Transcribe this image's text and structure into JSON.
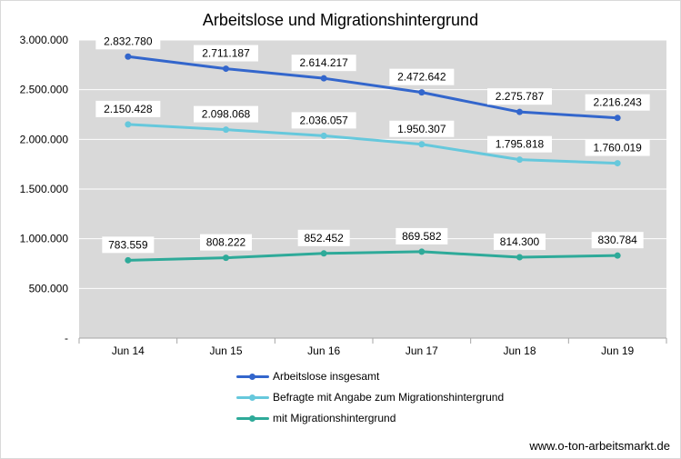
{
  "chart_data": {
    "type": "line",
    "title": "Arbeitslose und Migrationshintergrund",
    "categories": [
      "Jun 14",
      "Jun 15",
      "Jun 16",
      "Jun 17",
      "Jun 18",
      "Jun 19"
    ],
    "y_ticks": [
      0,
      500000,
      1000000,
      1500000,
      2000000,
      2500000,
      3000000
    ],
    "y_tick_labels": [
      "-",
      "500.000",
      "1.000.000",
      "1.500.000",
      "2.000.000",
      "2.500.000",
      "3.000.000"
    ],
    "ylim": [
      0,
      3000000
    ],
    "grid": true,
    "legend_position": "bottom",
    "series": [
      {
        "name": "Arbeitslose insgesamt",
        "color": "#3366cc",
        "values": [
          2832780,
          2711187,
          2614217,
          2472642,
          2275787,
          2216243
        ],
        "labels": [
          "2.832.780",
          "2.711.187",
          "2.614.217",
          "2.472.642",
          "2.275.787",
          "2.216.243"
        ]
      },
      {
        "name": "Befragte mit Angabe zum Migrationshintergrund",
        "color": "#66c8dc",
        "values": [
          2150428,
          2098068,
          2036057,
          1950307,
          1795818,
          1760019
        ],
        "labels": [
          "2.150.428",
          "2.098.068",
          "2.036.057",
          "1.950.307",
          "1.795.818",
          "1.760.019"
        ]
      },
      {
        "name": "mit Migrationshintergrund",
        "color": "#2eaa99",
        "values": [
          783559,
          808222,
          852452,
          869582,
          814300,
          830784
        ],
        "labels": [
          "783.559",
          "808.222",
          "852.452",
          "869.582",
          "814.300",
          "830.784"
        ]
      }
    ]
  },
  "source": "www.o-ton-arbeitsmarkt.de"
}
